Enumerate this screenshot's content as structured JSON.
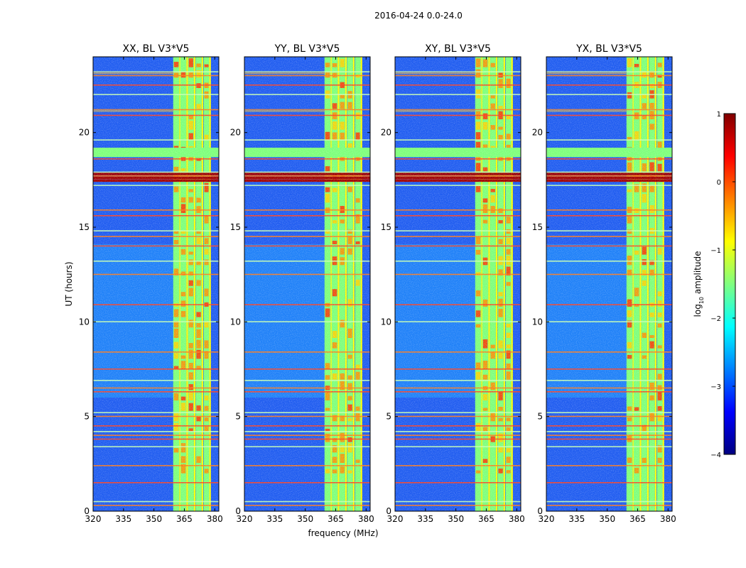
{
  "figure": {
    "suptitle": "2016-04-24 0.0-24.0",
    "xlabel": "frequency (MHz)",
    "ylabel": "UT (hours)"
  },
  "colorbar": {
    "label_prefix": "log",
    "label_sub": "10",
    "label_suffix": " amplitude",
    "ticks": [
      -4,
      -3,
      -2,
      -1,
      0,
      1
    ],
    "tick_labels": [
      "−4",
      "−3",
      "−2",
      "−1",
      "0",
      "1"
    ],
    "range": [
      -4,
      1
    ],
    "colormap": "jet",
    "stops": [
      "#000080",
      "#0000ff",
      "#0080ff",
      "#00ffff",
      "#80ff80",
      "#ffff00",
      "#ff8000",
      "#ff0000",
      "#800000"
    ]
  },
  "chart_data": {
    "type": "heatmap",
    "xlim": [
      320,
      382
    ],
    "ylim": [
      0,
      24
    ],
    "x_ticks": [
      320,
      335,
      350,
      365,
      380
    ],
    "y_ticks": [
      0,
      5,
      10,
      15,
      20
    ],
    "panels": [
      {
        "title": "XX, BL V3*V5"
      },
      {
        "title": "YY, BL V3*V5"
      },
      {
        "title": "XY, BL V3*V5"
      },
      {
        "title": "YX, BL V3*V5"
      }
    ],
    "bright_band_mhz": [
      [
        359.5,
        362.5
      ],
      [
        363,
        366
      ],
      [
        366.8,
        369.7
      ],
      [
        370.6,
        373.5
      ],
      [
        374.5,
        377.3
      ]
    ],
    "hot_rows_ut": [
      0.3,
      0.5,
      1.5,
      2.4,
      3.4,
      3.8,
      4.0,
      4.2,
      4.5,
      5.0,
      5.2,
      6.3,
      6.5,
      6.9,
      7.5,
      8.4,
      10.0,
      10.9,
      12.5,
      13.2,
      14.0,
      14.5,
      14.8,
      15.6,
      15.9,
      17.2,
      17.5,
      17.7,
      17.9,
      18.6,
      19.0,
      19.6,
      20.9,
      21.2,
      22.0,
      22.5,
      23.0,
      23.2
    ],
    "strong_rfi_ut": [
      17.45,
      17.6,
      17.8
    ]
  }
}
